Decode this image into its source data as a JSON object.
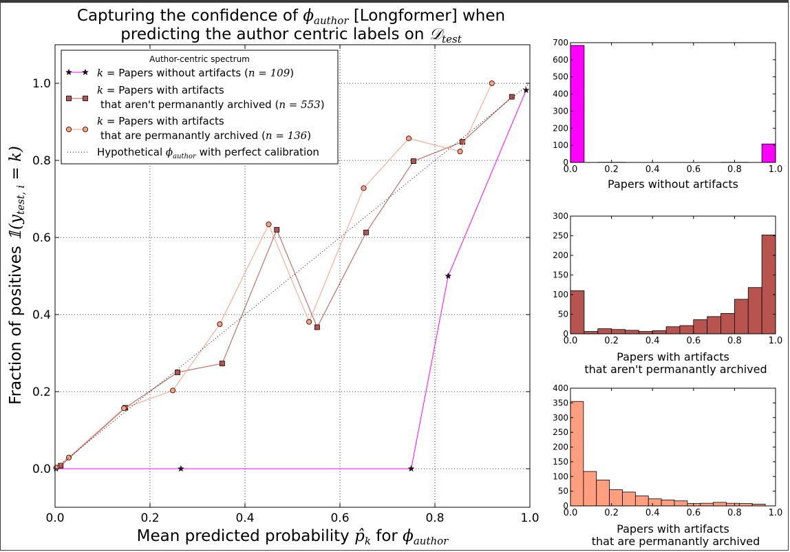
{
  "colors": {
    "no_artifacts": "#ff00ff",
    "not_archived": "#b85450",
    "archived": "#ff9f7f"
  },
  "main_chart": {
    "title_line1_pre": "Capturing the confidence of ",
    "title_phi": "ϕ",
    "title_phi_sub": "author",
    "title_line1_post": " [Longformer] when",
    "title_line2_pre": "predicting the author centric labels on ",
    "title_D": "𝒟",
    "title_D_sub": "test",
    "xlabel_pre": "Mean predicted probability ",
    "xlabel_p": "p̂",
    "xlabel_p_sub": "k",
    "xlabel_mid": " for ",
    "xlabel_phi": "ϕ",
    "xlabel_phi_sub": "author",
    "ylabel_pre": "Fraction of positives ",
    "ylabel_math": "𝟙(y",
    "ylabel_sub": "test, i",
    "ylabel_post": " = k)",
    "legend": {
      "title": "Author-centric spectrum",
      "entry1_k": "k",
      "entry1": " = Papers without artifacts (",
      "entry1_n": "n = 109",
      "entry1_end": ")",
      "entry2_k": "k",
      "entry2_a": " = Papers with artifacts",
      "entry2_b": "that aren't permanantly archived (",
      "entry2_n": "n = 553",
      "entry2_end": ")",
      "entry3_k": "k",
      "entry3_a": " = Papers with artifacts",
      "entry3_b": "that are permanantly archived (",
      "entry3_n": "n = 136",
      "entry3_end": ")",
      "entry4_pre": "Hypothetical ",
      "entry4_phi": "ϕ",
      "entry4_sub": "author",
      "entry4_post": " with perfect calibration"
    },
    "x_ticks": [
      "0.0",
      "0.2",
      "0.4",
      "0.6",
      "0.8",
      "1.0"
    ],
    "y_ticks": [
      "0.0",
      "0.2",
      "0.4",
      "0.6",
      "0.8",
      "1.0"
    ]
  },
  "chart_data": [
    {
      "type": "line",
      "xlim": [
        0.0,
        1.0
      ],
      "ylim": [
        -0.1,
        1.1
      ],
      "grid": true,
      "legend_position": "top-left",
      "series": [
        {
          "name": "k = Papers without artifacts (n = 109)",
          "marker": "star",
          "x": [
            0.002,
            0.265,
            0.75,
            0.828,
            0.992
          ],
          "y": [
            0.0,
            0.0,
            0.0,
            0.5,
            0.982
          ]
        },
        {
          "name": "k = Papers with artifacts that aren't permanantly archived (n = 553)",
          "marker": "square",
          "x": [
            0.012,
            0.148,
            0.258,
            0.352,
            0.467,
            0.552,
            0.655,
            0.755,
            0.858,
            0.962
          ],
          "y": [
            0.008,
            0.158,
            0.25,
            0.273,
            0.62,
            0.367,
            0.613,
            0.798,
            0.848,
            0.965
          ]
        },
        {
          "name": "k = Papers with artifacts that are permanantly archived (n = 136)",
          "marker": "circle",
          "x": [
            0.003,
            0.029,
            0.145,
            0.248,
            0.347,
            0.45,
            0.535,
            0.65,
            0.745,
            0.853,
            0.92
          ],
          "y": [
            0.003,
            0.029,
            0.157,
            0.203,
            0.375,
            0.634,
            0.381,
            0.728,
            0.857,
            0.823,
            1.0
          ]
        },
        {
          "name": "Hypothetical ϕ author with perfect calibration",
          "style": "dotted",
          "x": [
            0.0,
            1.0
          ],
          "y": [
            0.0,
            1.0
          ]
        }
      ]
    },
    {
      "type": "bar",
      "title": "Papers without artifacts",
      "bin_edges": [
        0.0,
        0.06667,
        0.13333,
        0.2,
        0.26667,
        0.33333,
        0.4,
        0.46667,
        0.53333,
        0.6,
        0.66667,
        0.73333,
        0.8,
        0.86667,
        0.93333,
        1.0
      ],
      "values": [
        684,
        0,
        1,
        1,
        0,
        0,
        0,
        0,
        0,
        0,
        0,
        1,
        1,
        0,
        108
      ],
      "xlim": [
        0.0,
        1.0
      ],
      "ylim": [
        0,
        700
      ],
      "x_ticks": [
        "0.0",
        "0.2",
        "0.4",
        "0.6",
        "0.8",
        "1.0"
      ],
      "y_ticks": [
        "0",
        "100",
        "200",
        "300",
        "400",
        "500",
        "600",
        "700"
      ]
    },
    {
      "type": "bar",
      "title_line1": "Papers with artifacts",
      "title_line2": "that aren't permanantly archived",
      "bin_edges": [
        0.0,
        0.06667,
        0.13333,
        0.2,
        0.26667,
        0.33333,
        0.4,
        0.46667,
        0.53333,
        0.6,
        0.66667,
        0.73333,
        0.8,
        0.86667,
        0.93333,
        1.0
      ],
      "values": [
        110,
        6,
        13,
        11,
        9,
        6,
        8,
        18,
        21,
        36,
        44,
        52,
        88,
        118,
        252
      ],
      "xlim": [
        0.0,
        1.0
      ],
      "ylim": [
        0,
        300
      ],
      "x_ticks": [
        "0.0",
        "0.2",
        "0.4",
        "0.6",
        "0.8",
        "1.0"
      ],
      "y_ticks": [
        "0",
        "50",
        "100",
        "150",
        "200",
        "250",
        "300"
      ]
    },
    {
      "type": "bar",
      "title_line1": "Papers with artifacts",
      "title_line2": "that are permanantly archived",
      "bin_edges": [
        0.0,
        0.06333,
        0.12667,
        0.19,
        0.25333,
        0.31667,
        0.38,
        0.44333,
        0.50667,
        0.57,
        0.63333,
        0.69667,
        0.76,
        0.82333,
        0.88667,
        0.95
      ],
      "values": [
        355,
        117,
        88,
        55,
        47,
        34,
        24,
        20,
        17,
        8,
        9,
        12,
        9,
        8,
        6
      ],
      "xlim": [
        0.0,
        1.0
      ],
      "ylim": [
        0,
        400
      ],
      "x_ticks": [
        "0.0",
        "0.2",
        "0.4",
        "0.6",
        "0.8",
        "1.0"
      ],
      "y_ticks": [
        "0",
        "50",
        "100",
        "150",
        "200",
        "250",
        "300",
        "350",
        "400"
      ]
    }
  ]
}
